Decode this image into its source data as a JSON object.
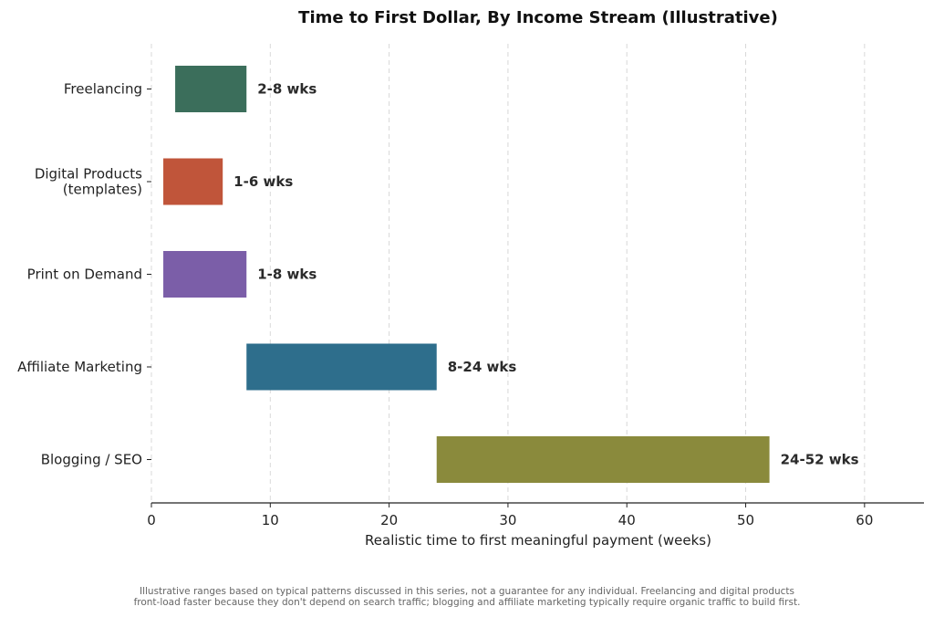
{
  "chart_data": {
    "type": "bar",
    "orientation": "horizontal-range",
    "title": "Time to First Dollar, By Income Stream (Illustrative)",
    "xlabel": "Realistic time to first meaningful payment (weeks)",
    "ylabel": "",
    "xlim": [
      0,
      65
    ],
    "xticks": [
      0,
      10,
      20,
      30,
      40,
      50,
      60
    ],
    "grid": "vertical dashed",
    "categories": [
      "Freelancing",
      "Digital Products\n(templates)",
      "Print on Demand",
      "Affiliate Marketing",
      "Blogging / SEO"
    ],
    "ranges": [
      {
        "start": 2,
        "end": 8,
        "label": "2-8 wks",
        "color": "#3b6e5b"
      },
      {
        "start": 1,
        "end": 6,
        "label": "1-6 wks",
        "color": "#c0553a"
      },
      {
        "start": 1,
        "end": 8,
        "label": "1-8 wks",
        "color": "#7b5ea8"
      },
      {
        "start": 8,
        "end": 24,
        "label": "8-24 wks",
        "color": "#2e6e8c"
      },
      {
        "start": 24,
        "end": 52,
        "label": "24-52 wks",
        "color": "#8a8a3c"
      }
    ]
  },
  "footnote": {
    "line1": "Illustrative ranges based on typical patterns discussed in this series, not a guarantee for any individual. Freelancing and digital products",
    "line2": "front-load faster because they don't depend on search traffic; blogging and affiliate marketing typically require organic traffic to build first."
  }
}
